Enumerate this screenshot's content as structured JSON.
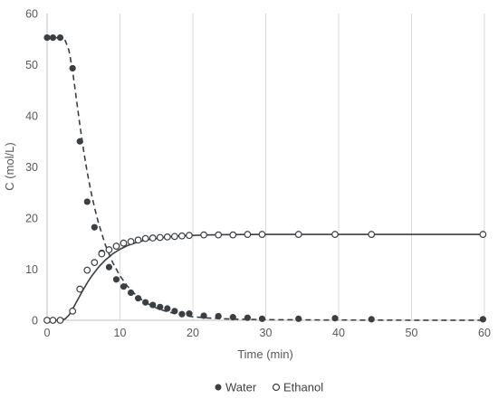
{
  "chart_data": {
    "type": "scatter",
    "xlabel": "Time (min)",
    "ylabel": "C (mol/L)",
    "xlim": [
      0,
      60
    ],
    "ylim": [
      0,
      60
    ],
    "x_ticks": [
      0,
      10,
      20,
      30,
      40,
      50,
      60
    ],
    "y_ticks": [
      0,
      10,
      20,
      30,
      40,
      50,
      60
    ],
    "grid": "vertical",
    "legend_position": "bottom",
    "series": [
      {
        "name": "Water",
        "marker": "filled-circle",
        "color": "#3a3f44",
        "x": [
          0,
          0.8,
          1.8,
          3.5,
          4.5,
          5.5,
          6.5,
          7.5,
          8.5,
          9.5,
          10.5,
          11.5,
          12.5,
          13.5,
          14.5,
          15.5,
          16.5,
          17.5,
          18.5,
          19.5,
          21.5,
          23.5,
          25.5,
          27.5,
          29.5,
          34.5,
          39.5,
          44.5,
          59.8
        ],
        "y": [
          55.3,
          55.3,
          55.3,
          49.3,
          35,
          23.2,
          18.2,
          13.2,
          10.4,
          8,
          6.6,
          5.4,
          4.3,
          3.5,
          3,
          2.6,
          2.3,
          1.8,
          1.2,
          1.3,
          0.9,
          0.8,
          0.6,
          0.5,
          0.3,
          0.3,
          0.4,
          0.2,
          0.2
        ]
      },
      {
        "name": "Ethanol",
        "marker": "open-circle",
        "color": "#3a3f44",
        "x": [
          0,
          0.8,
          1.8,
          3.5,
          4.5,
          5.5,
          6.5,
          7.5,
          8.5,
          9.5,
          10.5,
          11.5,
          12.5,
          13.5,
          14.5,
          15.5,
          16.5,
          17.5,
          18.5,
          19.5,
          21.5,
          23.5,
          25.5,
          27.5,
          29.5,
          34.5,
          39.5,
          44.5,
          59.8
        ],
        "y": [
          0,
          0,
          0,
          1.8,
          6.1,
          9.8,
          11.3,
          13,
          13.8,
          14.5,
          15.1,
          15.4,
          15.7,
          16,
          16.1,
          16.2,
          16.3,
          16.4,
          16.5,
          16.6,
          16.7,
          16.7,
          16.7,
          16.8,
          16.8,
          16.8,
          16.8,
          16.8,
          16.8
        ]
      }
    ],
    "fits": [
      {
        "for": "Water",
        "style": "dashed",
        "x": [
          0,
          1,
          2,
          2.5,
          3,
          3.5,
          4,
          4.5,
          5,
          5.5,
          6,
          6.5,
          7,
          8,
          9,
          10,
          11,
          12,
          13,
          14,
          15,
          16,
          18,
          20,
          22,
          25,
          30,
          40,
          50,
          60
        ],
        "y": [
          55.3,
          55.3,
          55.2,
          54.7,
          52.8,
          48.8,
          43.5,
          38.2,
          33.3,
          29,
          25.3,
          22.1,
          19.3,
          14.7,
          11.3,
          8.7,
          6.7,
          5.2,
          4,
          3.1,
          2.4,
          1.9,
          1.1,
          0.7,
          0.45,
          0.25,
          0.12,
          0.05,
          0.02,
          0.01
        ]
      },
      {
        "for": "Ethanol",
        "style": "solid",
        "x": [
          0,
          1,
          2,
          2.5,
          3,
          3.5,
          4,
          4.5,
          5,
          5.5,
          6,
          7,
          8,
          9,
          10,
          11,
          12,
          13,
          14,
          16,
          18,
          20,
          22,
          25,
          30,
          40,
          50,
          60
        ],
        "y": [
          0,
          0,
          0.05,
          0.3,
          1,
          2.2,
          3.5,
          4.8,
          6.1,
          7.3,
          8.4,
          10.3,
          11.8,
          13,
          13.9,
          14.6,
          15.1,
          15.5,
          15.8,
          16.2,
          16.5,
          16.6,
          16.7,
          16.75,
          16.8,
          16.8,
          16.8,
          16.8
        ]
      }
    ]
  }
}
